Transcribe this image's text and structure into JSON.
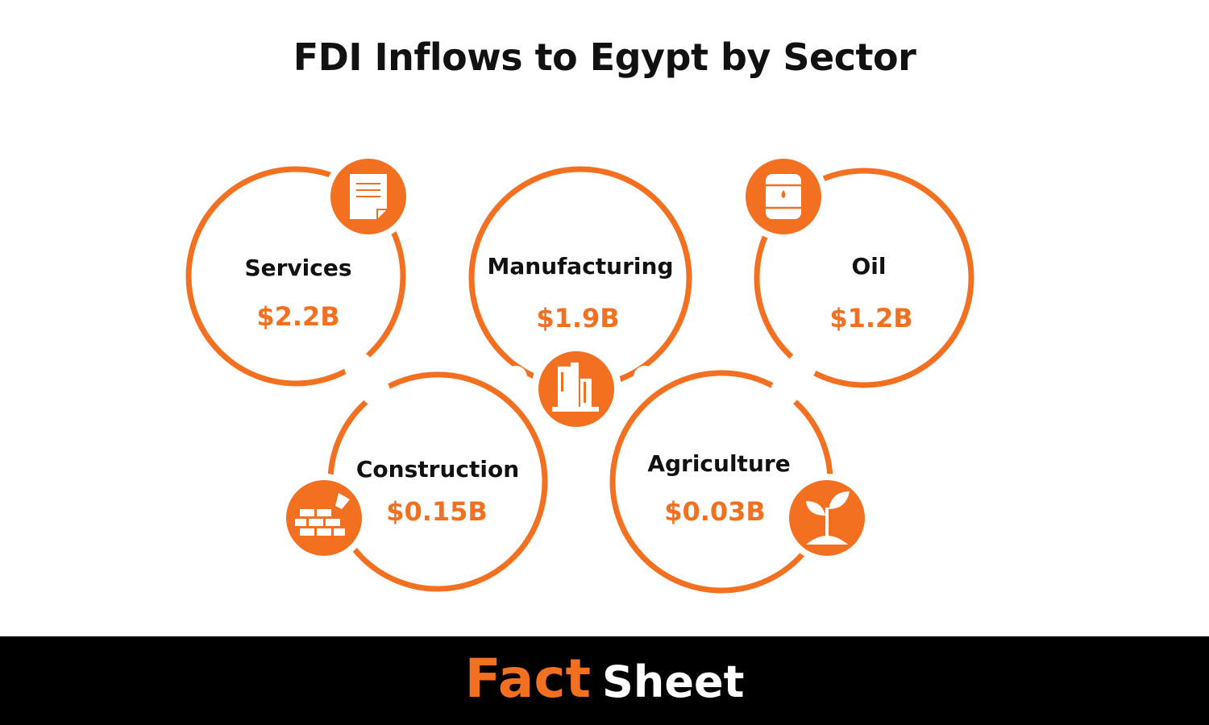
{
  "title": "FDI Inflows to Egypt by Sector",
  "colors": {
    "accent": "#F37021",
    "text": "#111111",
    "footer_bg": "#000000"
  },
  "sectors": [
    {
      "name": "Services",
      "value": "$2.2B",
      "icon": "document-icon"
    },
    {
      "name": "Manufacturing",
      "value": "$1.9B",
      "icon": "factory-icon"
    },
    {
      "name": "Oil",
      "value": "$1.2B",
      "icon": "oil-barrel-icon"
    },
    {
      "name": "Construction",
      "value": "$0.15B",
      "icon": "brick-wall-icon"
    },
    {
      "name": "Agriculture",
      "value": "$0.03B",
      "icon": "plant-sprout-icon"
    }
  ],
  "footer": {
    "word1": "Fact",
    "word2": "Sheet"
  }
}
